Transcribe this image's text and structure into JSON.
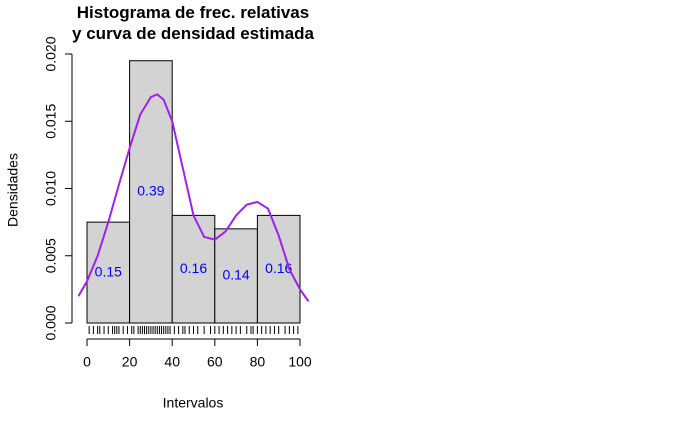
{
  "chart_data": {
    "type": "histogram",
    "title": "Histograma de frec. relativas\ny curva de densidad estimada",
    "xlabel": "Intervalos",
    "ylabel": "Densidades",
    "bins": [
      0,
      20,
      40,
      60,
      80,
      100
    ],
    "values": [
      0.0075,
      0.0195,
      0.008,
      0.007,
      0.008
    ],
    "relative_frequencies": [
      0.15,
      0.39,
      0.16,
      0.14,
      0.16
    ],
    "bar_color": "#d3d3d3",
    "label_color": "#0000ff",
    "density": {
      "color": "#a020f0",
      "x": [
        -4,
        0,
        5,
        10,
        15,
        20,
        25,
        30,
        33,
        36,
        40,
        45,
        50,
        55,
        60,
        65,
        70,
        75,
        80,
        85,
        90,
        95,
        100,
        104
      ],
      "values": [
        0.002,
        0.0031,
        0.005,
        0.0075,
        0.0103,
        0.013,
        0.0155,
        0.0168,
        0.017,
        0.0166,
        0.015,
        0.0115,
        0.008,
        0.0064,
        0.0062,
        0.0068,
        0.008,
        0.0088,
        0.009,
        0.0085,
        0.0065,
        0.004,
        0.0025,
        0.0016
      ]
    },
    "rug": [
      1,
      3,
      5,
      6,
      8,
      10,
      12,
      13,
      14,
      15,
      17,
      19,
      21,
      22,
      24,
      25,
      26,
      27,
      28,
      29,
      30,
      31,
      32,
      33,
      34,
      35,
      36,
      37,
      38,
      39,
      41,
      43,
      45,
      46,
      48,
      50,
      52,
      55,
      58,
      60,
      62,
      64,
      66,
      68,
      70,
      72,
      75,
      77,
      78,
      80,
      82,
      84,
      86,
      88,
      90,
      93,
      95,
      97,
      99
    ],
    "xlim": [
      -4,
      104
    ],
    "ylim": [
      0,
      0.02
    ],
    "xticks": [
      0,
      20,
      40,
      60,
      80,
      100
    ],
    "yticks": [
      {
        "value": 0,
        "label": "0.000"
      },
      {
        "value": 0.005,
        "label": "0.005"
      },
      {
        "value": 0.01,
        "label": "0.010"
      },
      {
        "value": 0.015,
        "label": "0.015"
      },
      {
        "value": 0.02,
        "label": "0.020"
      }
    ]
  }
}
